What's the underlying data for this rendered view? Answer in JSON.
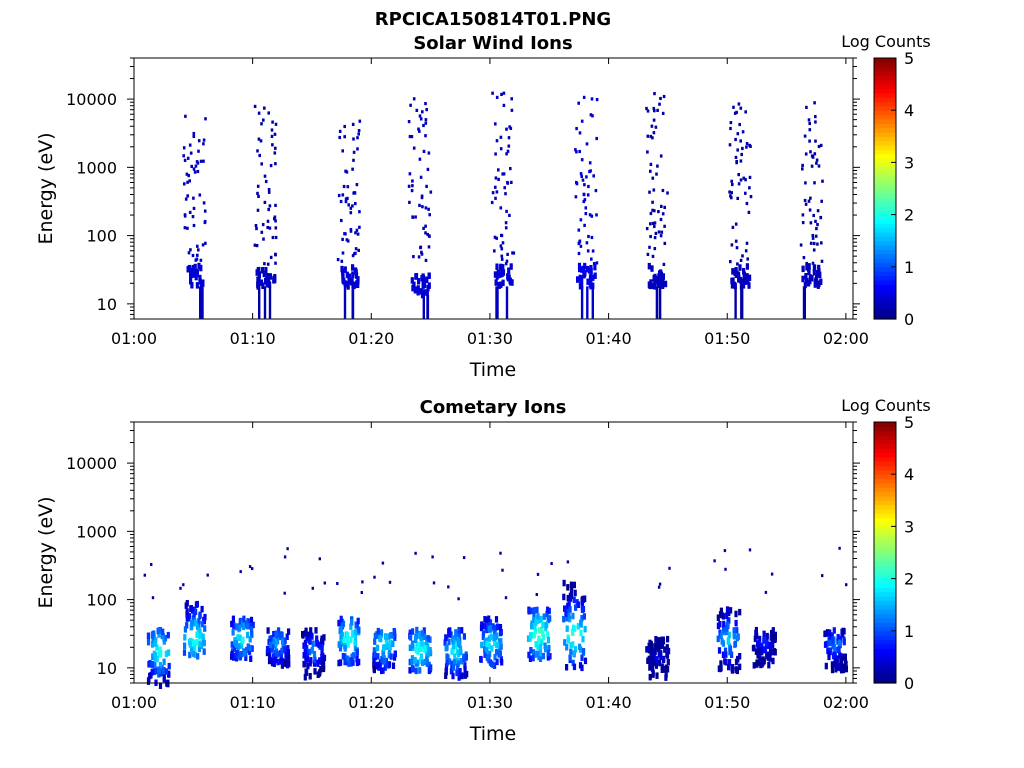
{
  "figure_title": "RPCICA150814T01.PNG",
  "chart_data": [
    {
      "type": "heatmap",
      "title": "Solar Wind Ions",
      "xlabel": "Time",
      "ylabel": "Energy (eV)",
      "x_scale": "time",
      "y_scale": "log",
      "xlim": [
        "01:00",
        "02:00"
      ],
      "ylim": [
        6,
        40000
      ],
      "x_ticks": [
        "01:00",
        "01:10",
        "01:20",
        "01:30",
        "01:40",
        "01:50",
        "02:00"
      ],
      "y_ticks": [
        "10",
        "100",
        "1000",
        "10000"
      ],
      "colorbar": {
        "label": "Log Counts",
        "range": [
          0,
          5
        ],
        "ticks": [
          "0",
          "1",
          "2",
          "3",
          "4",
          "5"
        ],
        "colormap": "jet"
      },
      "bursts_log_counts": [
        {
          "time": "01:05",
          "energy_range": [
            15,
            6000
          ],
          "core_energy": [
            20,
            40
          ],
          "level": 0.3
        },
        {
          "time": "01:11",
          "energy_range": [
            20,
            12000
          ],
          "core_energy": [
            20,
            35
          ],
          "level": 0.2
        },
        {
          "time": "01:18",
          "energy_range": [
            15,
            5000
          ],
          "core_energy": [
            20,
            40
          ],
          "level": 0.3
        },
        {
          "time": "01:24",
          "energy_range": [
            15,
            11000
          ],
          "core_energy": [
            15,
            30
          ],
          "level": 0.3
        },
        {
          "time": "01:31",
          "energy_range": [
            15,
            13000
          ],
          "core_energy": [
            20,
            40
          ],
          "level": 0.3
        },
        {
          "time": "01:38",
          "energy_range": [
            15,
            12000
          ],
          "core_energy": [
            20,
            40
          ],
          "level": 0.4
        },
        {
          "time": "01:44",
          "energy_range": [
            15,
            13000
          ],
          "core_energy": [
            20,
            40
          ],
          "level": 0.2
        },
        {
          "time": "01:51",
          "energy_range": [
            15,
            12000
          ],
          "core_energy": [
            20,
            40
          ],
          "level": 0.2
        },
        {
          "time": "01:57",
          "energy_range": [
            15,
            10000
          ],
          "core_energy": [
            20,
            40
          ],
          "level": 0.2
        }
      ]
    },
    {
      "type": "heatmap",
      "title": "Cometary Ions",
      "xlabel": "Time",
      "ylabel": "Energy (eV)",
      "x_scale": "time",
      "y_scale": "log",
      "xlim": [
        "01:00",
        "02:00"
      ],
      "ylim": [
        6,
        40000
      ],
      "x_ticks": [
        "01:00",
        "01:10",
        "01:20",
        "01:30",
        "01:40",
        "01:50",
        "02:00"
      ],
      "y_ticks": [
        "10",
        "100",
        "1000",
        "10000"
      ],
      "colorbar": {
        "label": "Log Counts",
        "range": [
          0,
          5
        ],
        "ticks": [
          "0",
          "1",
          "2",
          "3",
          "4",
          "5"
        ],
        "colormap": "jet"
      },
      "bursts_log_counts": [
        {
          "time": "01:02",
          "energy_range": [
            6,
            40
          ],
          "peak_energy": 20,
          "peak_level": 2.0
        },
        {
          "time": "01:05",
          "energy_range": [
            15,
            100
          ],
          "peak_energy": 30,
          "peak_level": 2.0
        },
        {
          "time": "01:09",
          "energy_range": [
            15,
            60
          ],
          "peak_energy": 30,
          "peak_level": 1.8
        },
        {
          "time": "01:12",
          "energy_range": [
            12,
            40
          ],
          "peak_energy": 25,
          "peak_level": 1.4
        },
        {
          "time": "01:15",
          "energy_range": [
            8,
            40
          ],
          "peak_energy": 20,
          "peak_level": 1.2
        },
        {
          "time": "01:18",
          "energy_range": [
            12,
            60
          ],
          "peak_energy": 30,
          "peak_level": 2.0
        },
        {
          "time": "01:21",
          "energy_range": [
            10,
            40
          ],
          "peak_energy": 25,
          "peak_level": 1.8
        },
        {
          "time": "01:24",
          "energy_range": [
            10,
            40
          ],
          "peak_energy": 20,
          "peak_level": 2.0
        },
        {
          "time": "01:27",
          "energy_range": [
            8,
            40
          ],
          "peak_energy": 20,
          "peak_level": 1.8
        },
        {
          "time": "01:30",
          "energy_range": [
            12,
            60
          ],
          "peak_energy": 25,
          "peak_level": 1.8
        },
        {
          "time": "01:34",
          "energy_range": [
            15,
            80
          ],
          "peak_energy": 35,
          "peak_level": 2.2
        },
        {
          "time": "01:37",
          "energy_range": [
            10,
            200
          ],
          "peak_energy": 35,
          "peak_level": 2.2
        },
        {
          "time": "01:44",
          "energy_range": [
            8,
            30
          ],
          "peak_energy": 15,
          "peak_level": 0.5
        },
        {
          "time": "01:50",
          "energy_range": [
            10,
            80
          ],
          "peak_energy": 30,
          "peak_level": 1.6
        },
        {
          "time": "01:53",
          "energy_range": [
            12,
            40
          ],
          "peak_energy": 25,
          "peak_level": 0.8
        },
        {
          "time": "01:59",
          "energy_range": [
            10,
            40
          ],
          "peak_energy": 25,
          "peak_level": 1.2
        }
      ]
    }
  ]
}
